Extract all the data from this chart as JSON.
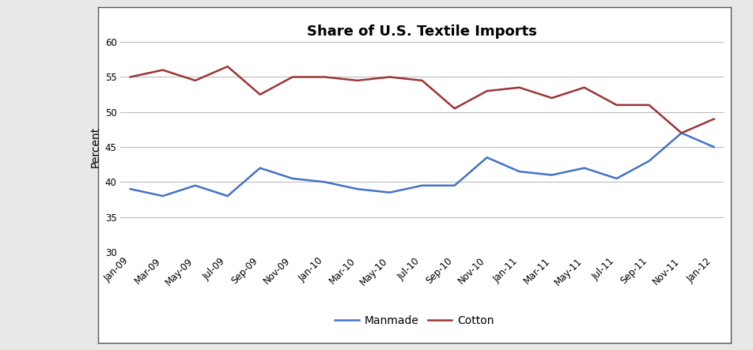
{
  "title": "Share of U.S. Textile Imports",
  "ylabel": "Percent",
  "ylim": [
    30,
    60
  ],
  "yticks": [
    30,
    35,
    40,
    45,
    50,
    55,
    60
  ],
  "x_labels": [
    "Jan-09",
    "Mar-09",
    "May-09",
    "Jul-09",
    "Sep-09",
    "Nov-09",
    "Jan-10",
    "Mar-10",
    "May-10",
    "Jul-10",
    "Sep-10",
    "Nov-10",
    "Jan-11",
    "Mar-11",
    "May-11",
    "Jul-11",
    "Sep-11",
    "Nov-11",
    "Jan-12"
  ],
  "manmade": [
    39.0,
    38.0,
    39.5,
    38.0,
    42.0,
    40.5,
    40.0,
    39.0,
    38.5,
    39.5,
    39.5,
    43.5,
    41.5,
    41.0,
    42.0,
    40.5,
    43.0,
    47.0,
    45.0
  ],
  "cotton": [
    55.0,
    56.0,
    54.5,
    56.5,
    52.5,
    55.0,
    55.0,
    54.5,
    55.0,
    54.5,
    50.5,
    53.0,
    53.5,
    52.0,
    53.5,
    51.0,
    51.0,
    47.0,
    49.0
  ],
  "manmade_color": "#4472C4",
  "cotton_color": "#9B3535",
  "line_width": 1.8,
  "legend_labels": [
    "Manmade",
    "Cotton"
  ],
  "outer_bg_color": "#E8E8E8",
  "box_bg_color": "#FFFFFF",
  "grid_color": "#AAAAAA",
  "title_fontsize": 13,
  "axis_label_fontsize": 10,
  "tick_fontsize": 8.5
}
